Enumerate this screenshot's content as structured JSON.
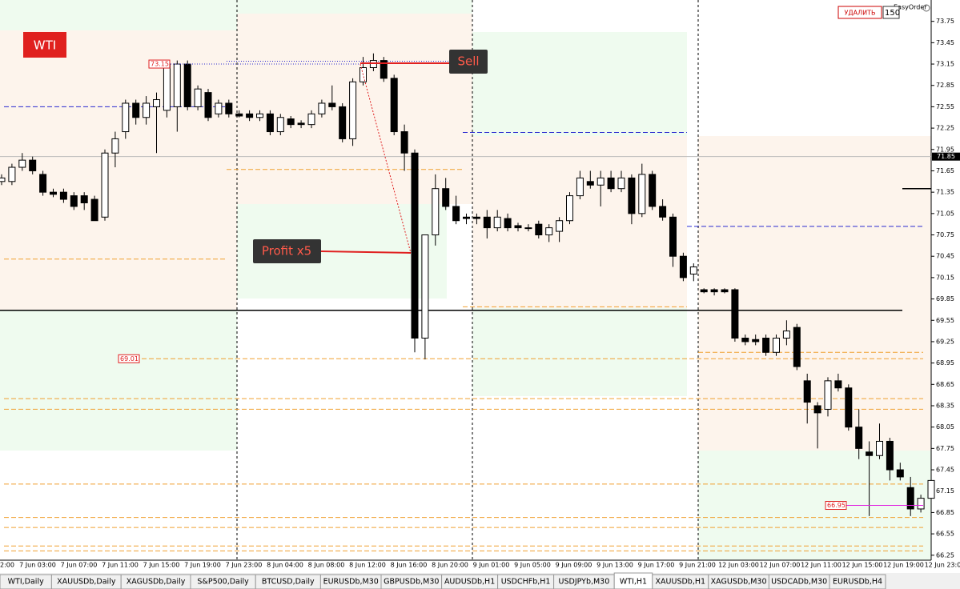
{
  "chart_data": {
    "type": "candlestick",
    "symbol": "WTI",
    "ylim": [
      66.18,
      74.05
    ],
    "yticks": [
      73.75,
      73.45,
      73.15,
      72.85,
      72.55,
      72.25,
      71.95,
      71.65,
      71.35,
      71.05,
      70.75,
      70.45,
      70.15,
      69.85,
      69.55,
      69.25,
      68.95,
      68.65,
      68.35,
      68.05,
      67.75,
      67.45,
      67.15,
      66.85,
      66.55,
      66.25
    ],
    "xlabels": [
      "2:00",
      "7 Jun 03:00",
      "7 Jun 07:00",
      "7 Jun 11:00",
      "7 Jun 15:00",
      "7 Jun 19:00",
      "7 Jun 23:00",
      "8 Jun 04:00",
      "8 Jun 08:00",
      "8 Jun 12:00",
      "8 Jun 16:00",
      "8 Jun 20:00",
      "9 Jun 01:00",
      "9 Jun 05:00",
      "9 Jun 09:00",
      "9 Jun 13:00",
      "9 Jun 17:00",
      "9 Jun 21:00",
      "12 Jun 03:00",
      "12 Jun 07:00",
      "12 Jun 11:00",
      "12 Jun 15:00",
      "12 Jun 19:00",
      "12 Jun 23:00"
    ],
    "candles": [
      [
        71.5,
        71.6,
        71.45,
        71.55
      ],
      [
        71.5,
        71.75,
        71.45,
        71.7
      ],
      [
        71.7,
        71.9,
        71.65,
        71.8
      ],
      [
        71.8,
        71.85,
        71.6,
        71.65
      ],
      [
        71.6,
        71.65,
        71.3,
        71.35
      ],
      [
        71.35,
        71.4,
        71.28,
        71.32
      ],
      [
        71.35,
        71.4,
        71.2,
        71.25
      ],
      [
        71.3,
        71.35,
        71.1,
        71.15
      ],
      [
        71.3,
        71.35,
        71.1,
        71.2
      ],
      [
        71.25,
        71.3,
        70.95,
        70.95
      ],
      [
        71.0,
        71.95,
        70.95,
        71.9
      ],
      [
        71.9,
        72.2,
        71.7,
        72.1
      ],
      [
        72.2,
        72.65,
        72.1,
        72.6
      ],
      [
        72.6,
        72.65,
        72.3,
        72.4
      ],
      [
        72.4,
        72.7,
        72.3,
        72.6
      ],
      [
        72.55,
        72.75,
        71.9,
        72.65
      ],
      [
        72.5,
        73.2,
        72.4,
        73.15
      ],
      [
        72.55,
        73.2,
        72.2,
        73.15
      ],
      [
        73.15,
        73.2,
        72.5,
        72.55
      ],
      [
        72.55,
        72.85,
        72.5,
        72.8
      ],
      [
        72.75,
        72.8,
        72.35,
        72.4
      ],
      [
        72.45,
        72.65,
        72.4,
        72.6
      ],
      [
        72.6,
        72.65,
        72.4,
        72.45
      ],
      [
        72.45,
        72.5,
        72.4,
        72.42
      ],
      [
        72.45,
        72.5,
        72.35,
        72.4
      ],
      [
        72.4,
        72.5,
        72.35,
        72.45
      ],
      [
        72.45,
        72.5,
        72.15,
        72.2
      ],
      [
        72.2,
        72.45,
        72.15,
        72.4
      ],
      [
        72.38,
        72.42,
        72.25,
        72.3
      ],
      [
        72.32,
        72.36,
        72.25,
        72.3
      ],
      [
        72.3,
        72.5,
        72.25,
        72.45
      ],
      [
        72.45,
        72.65,
        72.4,
        72.6
      ],
      [
        72.6,
        72.85,
        72.5,
        72.55
      ],
      [
        72.55,
        72.6,
        72.05,
        72.1
      ],
      [
        72.1,
        72.95,
        72.0,
        72.9
      ],
      [
        72.9,
        73.25,
        72.85,
        73.1
      ],
      [
        73.1,
        73.3,
        73.05,
        73.2
      ],
      [
        73.2,
        73.25,
        72.9,
        72.95
      ],
      [
        72.95,
        73.0,
        72.15,
        72.2
      ],
      [
        72.2,
        72.3,
        71.65,
        71.9
      ],
      [
        71.9,
        71.95,
        69.1,
        69.3
      ],
      [
        69.3,
        70.75,
        69.0,
        70.75
      ],
      [
        70.75,
        71.6,
        70.6,
        71.4
      ],
      [
        71.4,
        71.55,
        71.1,
        71.15
      ],
      [
        71.15,
        71.3,
        70.9,
        70.95
      ],
      [
        71.0,
        71.05,
        70.9,
        70.98
      ],
      [
        71.0,
        71.05,
        70.9,
        70.98
      ],
      [
        71.0,
        71.1,
        70.7,
        70.85
      ],
      [
        70.85,
        71.1,
        70.8,
        71.0
      ],
      [
        70.98,
        71.05,
        70.8,
        70.85
      ],
      [
        70.88,
        70.92,
        70.8,
        70.85
      ],
      [
        70.85,
        70.9,
        70.8,
        70.85
      ],
      [
        70.9,
        70.95,
        70.7,
        70.75
      ],
      [
        70.75,
        70.9,
        70.65,
        70.85
      ],
      [
        70.8,
        71.0,
        70.65,
        70.95
      ],
      [
        70.95,
        71.35,
        70.9,
        71.3
      ],
      [
        71.3,
        71.65,
        71.25,
        71.55
      ],
      [
        71.5,
        71.65,
        71.4,
        71.45
      ],
      [
        71.45,
        71.65,
        71.15,
        71.55
      ],
      [
        71.55,
        71.65,
        71.35,
        71.4
      ],
      [
        71.4,
        71.65,
        71.35,
        71.55
      ],
      [
        71.55,
        71.6,
        70.9,
        71.05
      ],
      [
        71.05,
        71.75,
        71.0,
        71.6
      ],
      [
        71.6,
        71.65,
        71.1,
        71.15
      ],
      [
        71.15,
        71.25,
        70.95,
        71.0
      ],
      [
        71.0,
        71.05,
        70.3,
        70.45
      ],
      [
        70.45,
        70.5,
        70.1,
        70.15
      ],
      [
        70.2,
        70.35,
        70.1,
        70.3
      ],
      [
        69.98,
        70.0,
        69.93,
        69.95
      ],
      [
        69.98,
        70.0,
        69.9,
        69.95
      ],
      [
        69.98,
        70.0,
        69.93,
        69.95
      ],
      [
        69.98,
        70.0,
        69.25,
        69.3
      ],
      [
        69.3,
        69.35,
        69.2,
        69.25
      ],
      [
        69.28,
        69.35,
        69.2,
        69.25
      ],
      [
        69.3,
        69.35,
        69.05,
        69.1
      ],
      [
        69.1,
        69.35,
        69.05,
        69.3
      ],
      [
        69.3,
        69.55,
        69.2,
        69.4
      ],
      [
        69.45,
        69.5,
        68.85,
        68.9
      ],
      [
        68.7,
        68.8,
        68.1,
        68.4
      ],
      [
        68.35,
        68.4,
        67.75,
        68.25
      ],
      [
        68.3,
        68.75,
        68.2,
        68.7
      ],
      [
        68.7,
        68.8,
        68.55,
        68.6
      ],
      [
        68.6,
        68.65,
        68.0,
        68.05
      ],
      [
        68.05,
        68.3,
        67.6,
        67.75
      ],
      [
        67.7,
        67.85,
        66.8,
        67.65
      ],
      [
        67.65,
        68.1,
        67.6,
        67.85
      ],
      [
        67.85,
        67.9,
        67.3,
        67.45
      ],
      [
        67.45,
        67.55,
        67.3,
        67.35
      ],
      [
        67.2,
        67.35,
        66.8,
        66.9
      ],
      [
        66.9,
        67.1,
        66.85,
        67.05
      ],
      [
        67.05,
        67.35,
        66.95,
        67.3
      ]
    ],
    "levels": [
      {
        "value": 71.67,
        "color": "#f0a030"
      },
      {
        "value": 70.41,
        "color": "#f0a030"
      },
      {
        "value": 69.74,
        "color": "#f0a030"
      },
      {
        "value": 69.1,
        "color": "#f0a030"
      },
      {
        "value": 69.01,
        "color": "#f0a030"
      },
      {
        "value": 68.45,
        "color": "#f0a030"
      },
      {
        "value": 68.3,
        "color": "#f0a030"
      },
      {
        "value": 67.25,
        "color": "#f0a030"
      },
      {
        "value": 66.78,
        "color": "#f0a030"
      },
      {
        "value": 66.64,
        "color": "#f0a030"
      },
      {
        "value": 66.38,
        "color": "#f0a030"
      },
      {
        "value": 66.31,
        "color": "#f0a030"
      },
      {
        "value": 72.55,
        "color": "#2a2ad0"
      },
      {
        "value": 73.19,
        "color": "#2a2ad0"
      },
      {
        "value": 72.19,
        "color": "#2a2ad0"
      },
      {
        "value": 70.87,
        "color": "#2a2ad0"
      }
    ],
    "support": 69.69,
    "stop": 71.4,
    "bid": 71.85,
    "price_labels": [
      {
        "value": 73.15,
        "label": "73.15"
      },
      {
        "value": 69.01,
        "label": "69.01"
      },
      {
        "value": 66.95,
        "label": "66.95"
      }
    ],
    "annotations": {
      "sell": "Sell",
      "profit": "Profit x5"
    },
    "panel": {
      "title": "EasyOrder",
      "button": "УДАЛИТЬ",
      "input": "150"
    },
    "tabs": [
      "WTI,Daily",
      "XAUUSDb,Daily",
      "XAGUSDb,Daily",
      "S&P500,Daily",
      "BTCUSD,Daily",
      "EURUSDb,M30",
      "GBPUSDb,M30",
      "AUDUSDb,H1",
      "USDCHFb,H1",
      "USDJPYb,M30",
      "WTI,H1",
      "XAUUSDb,H1",
      "XAGUSDb,M30",
      "USDCADb,M30",
      "EURUSDb,H4"
    ],
    "active_tab": 10
  }
}
